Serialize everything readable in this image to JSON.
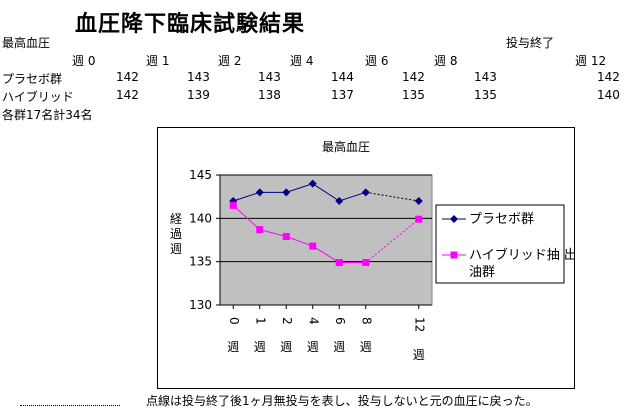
{
  "title": "血圧降下臨床試験結果",
  "table": {
    "label": "最高血圧",
    "end_label": "投与終了",
    "headers": [
      "週 0",
      "週 1",
      "週 2",
      "週 4",
      "週 6",
      "週 8",
      "週 12"
    ],
    "rows": [
      {
        "name": "プラセボ群",
        "values": [
          142,
          143,
          143,
          144,
          142,
          143,
          142
        ]
      },
      {
        "name": "ハイブリッド",
        "values": [
          142,
          139,
          138,
          137,
          135,
          135,
          140
        ]
      }
    ],
    "note": "各群17名計34名"
  },
  "chart_data": {
    "type": "line",
    "title": "最高血圧",
    "ylabel": "経過週",
    "xlabel": "",
    "categories": [
      "週0",
      "週1",
      "週2",
      "週4",
      "週6",
      "週8",
      "週12"
    ],
    "ylim": [
      130,
      145
    ],
    "yticks": [
      130,
      135,
      140,
      145
    ],
    "grid": true,
    "legend_position": "right",
    "series": [
      {
        "name": "プラセボ群",
        "values": [
          142,
          143,
          143,
          144,
          142,
          143,
          142
        ],
        "color": "#000080",
        "marker": "diamond",
        "dashed_last_segment": true
      },
      {
        "name": "ハイブリッド抽出油群",
        "values": [
          141.5,
          138.7,
          137.9,
          136.8,
          134.9,
          134.9,
          139.9
        ],
        "color": "#ff00ff",
        "marker": "square",
        "dashed_last_segment": true
      }
    ],
    "plot_background": "#c0c0c0"
  },
  "footnote": "点線は投与終了後1ヶ月無投与を表し、投与しないと元の血圧に戻った。"
}
